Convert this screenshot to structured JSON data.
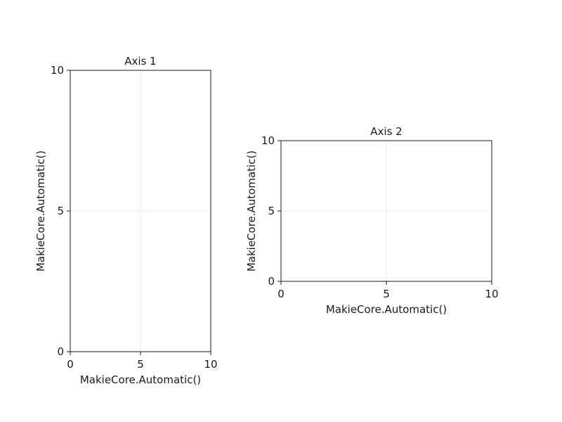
{
  "chart_data": [
    {
      "type": "line",
      "title": "Axis 1",
      "xlabel": "MakieCore.Automatic()",
      "ylabel": "MakieCore.Automatic()",
      "xlim": [
        0,
        10
      ],
      "ylim": [
        0,
        10
      ],
      "xticks": [
        0,
        5,
        10
      ],
      "yticks": [
        0,
        5,
        10
      ],
      "xtick_labels": [
        "0",
        "5",
        "10"
      ],
      "ytick_labels": [
        "0",
        "5",
        "10"
      ],
      "grid": true,
      "series": []
    },
    {
      "type": "line",
      "title": "Axis 2",
      "xlabel": "MakieCore.Automatic()",
      "ylabel": "MakieCore.Automatic()",
      "xlim": [
        0,
        10
      ],
      "ylim": [
        0,
        10
      ],
      "xticks": [
        0,
        5,
        10
      ],
      "yticks": [
        0,
        5,
        10
      ],
      "xtick_labels": [
        "0",
        "5",
        "10"
      ],
      "ytick_labels": [
        "0",
        "5",
        "10"
      ],
      "grid": true,
      "series": []
    }
  ]
}
